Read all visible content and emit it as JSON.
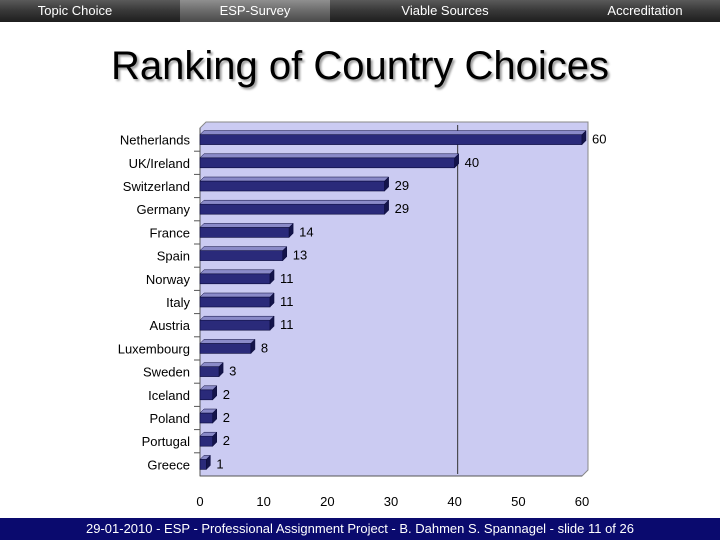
{
  "nav": {
    "items": [
      {
        "label": "Topic Choice"
      },
      {
        "label": "ESP-Survey"
      },
      {
        "label": "Viable Sources"
      },
      {
        "label": "Accreditation"
      }
    ],
    "active_index": 1
  },
  "title": "Ranking of Country Choices",
  "footer": "29-01-2010 - ESP - Professional Assignment Project - B. Dahmen S. Spannagel - slide 11 of 26",
  "colors": {
    "bar": "#2a2a7a",
    "bar_top": "#8a8ac8",
    "bar_side": "#14144a",
    "plot_bg": "#cbcbf2",
    "nav_bg": "#2e2e2e",
    "footer_bg": "#0a0a6e"
  },
  "chart_data": {
    "type": "bar",
    "orientation": "horizontal",
    "title": "",
    "xlabel": "",
    "ylabel": "",
    "categories": [
      "Netherlands",
      "UK/Ireland",
      "Switzerland",
      "Germany",
      "France",
      "Spain",
      "Norway",
      "Italy",
      "Austria",
      "Luxembourg",
      "Sweden",
      "Iceland",
      "Poland",
      "Portugal",
      "Greece"
    ],
    "values": [
      60,
      40,
      29,
      29,
      14,
      13,
      11,
      11,
      11,
      8,
      3,
      2,
      2,
      2,
      1
    ],
    "xlim": [
      0,
      60
    ],
    "xticks": [
      0,
      10,
      20,
      30,
      40,
      50,
      60
    ],
    "reference_line_x": 40,
    "grid": false,
    "legend": "none"
  }
}
